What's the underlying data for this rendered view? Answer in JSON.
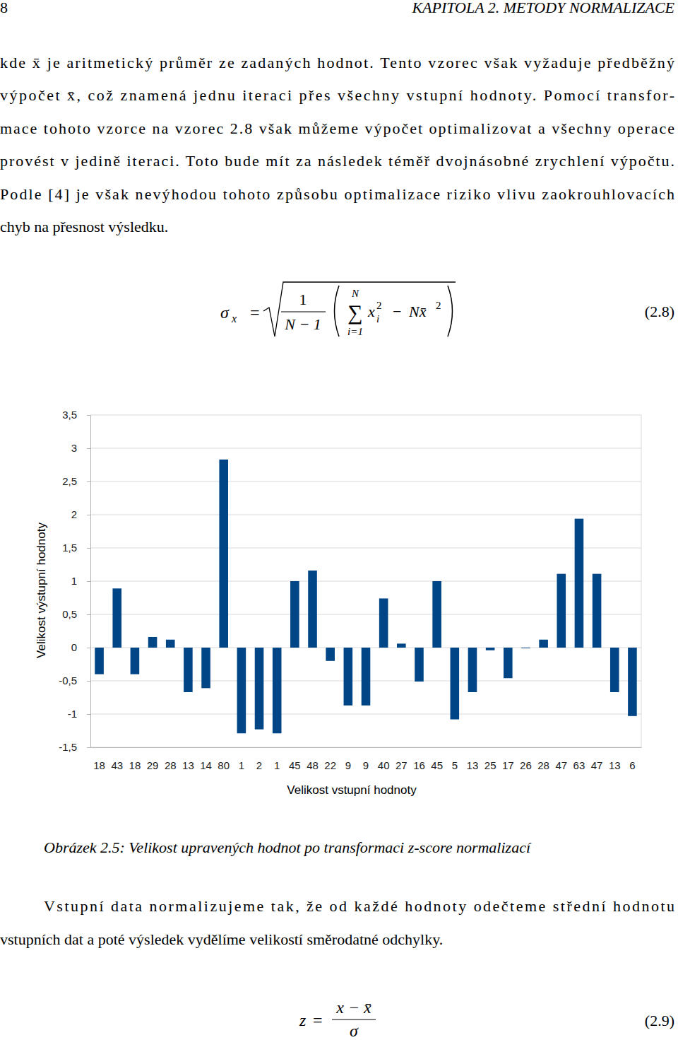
{
  "header": {
    "page_number": "8",
    "running_title": "KAPITOLA 2. METODY NORMALIZACE"
  },
  "paragraph_1": [
    "kde x̄ je aritmetický průměr ze zadaných hodnot. Tento vzorec však vyžaduje předběžný",
    "výpočet x̄, což znamená jednu iteraci přes všechny vstupní hodnoty. Pomocí transfor-",
    "mace tohoto vzorce na vzorec 2.8 však můžeme výpočet optimalizovat a všechny operace",
    "provést v jedině iteraci. Toto bude mít za následek téměř dvojnásobné zrychlení výpočtu.",
    "Podle [4] je však nevýhodou tohoto způsobu optimalizace riziko vlivu zaokrouhlovacích",
    "chyb na přesnost výsledku."
  ],
  "equation_2_8": {
    "lhs": "σ",
    "lhs_sub": "x",
    "equals": "=",
    "numerator": "1",
    "denominator": "N − 1",
    "sum_symbol": "∑",
    "sum_upper": "N",
    "sum_lower": "i=1",
    "term": "x",
    "term_sup": "2",
    "term_sub": "i",
    "minus": "−",
    "second_term": "Nx̄",
    "second_sup": "2",
    "label": "(2.8)"
  },
  "chart_data": {
    "type": "bar",
    "categories": [
      "18",
      "43",
      "18",
      "29",
      "28",
      "13",
      "14",
      "80",
      "1",
      "2",
      "1",
      "45",
      "48",
      "22",
      "9",
      "9",
      "40",
      "27",
      "16",
      "45",
      "5",
      "13",
      "25",
      "17",
      "26",
      "28",
      "47",
      "63",
      "47",
      "13",
      "6"
    ],
    "values": [
      -0.4,
      0.89,
      -0.4,
      0.16,
      0.12,
      -0.67,
      -0.61,
      2.83,
      -1.29,
      -1.23,
      -1.29,
      1.0,
      1.16,
      -0.2,
      -0.87,
      -0.87,
      0.74,
      0.06,
      -0.51,
      1.0,
      -1.08,
      -0.67,
      -0.04,
      -0.46,
      -0.01,
      0.12,
      1.11,
      1.94,
      1.11,
      -0.67,
      -1.03
    ],
    "color": "#004586",
    "ylim": [
      -1.5,
      3.5
    ],
    "yticks": [
      {
        "value": -1.5,
        "label": "-1,5"
      },
      -1,
      {
        "value": -0.5,
        "label": "-0,5"
      },
      0,
      {
        "value": 0.5,
        "label": "0,5"
      },
      1,
      {
        "value": 1.5,
        "label": "1,5"
      },
      2,
      {
        "value": 2.5,
        "label": "2,5"
      },
      3,
      {
        "value": 3.5,
        "label": "3,5"
      }
    ],
    "grid": true,
    "x_label": "Velikost vstupní hodnoty",
    "y_label": "Velikost výstupní hodnoty"
  },
  "caption": "Obrázek 2.5: Velikost upravených hodnot po transformaci z-score normalizací",
  "paragraph_2": [
    "Vstupní data normalizujeme tak, že od každé hodnoty odečteme střední hodnotu",
    "vstupních dat a poté výsledek vydělíme velikostí směrodatné odchylky."
  ],
  "equation_2_9": {
    "lhs": "z",
    "equals": "=",
    "numerator": "x − x̄",
    "denominator": "σ",
    "label": "(2.9)"
  }
}
